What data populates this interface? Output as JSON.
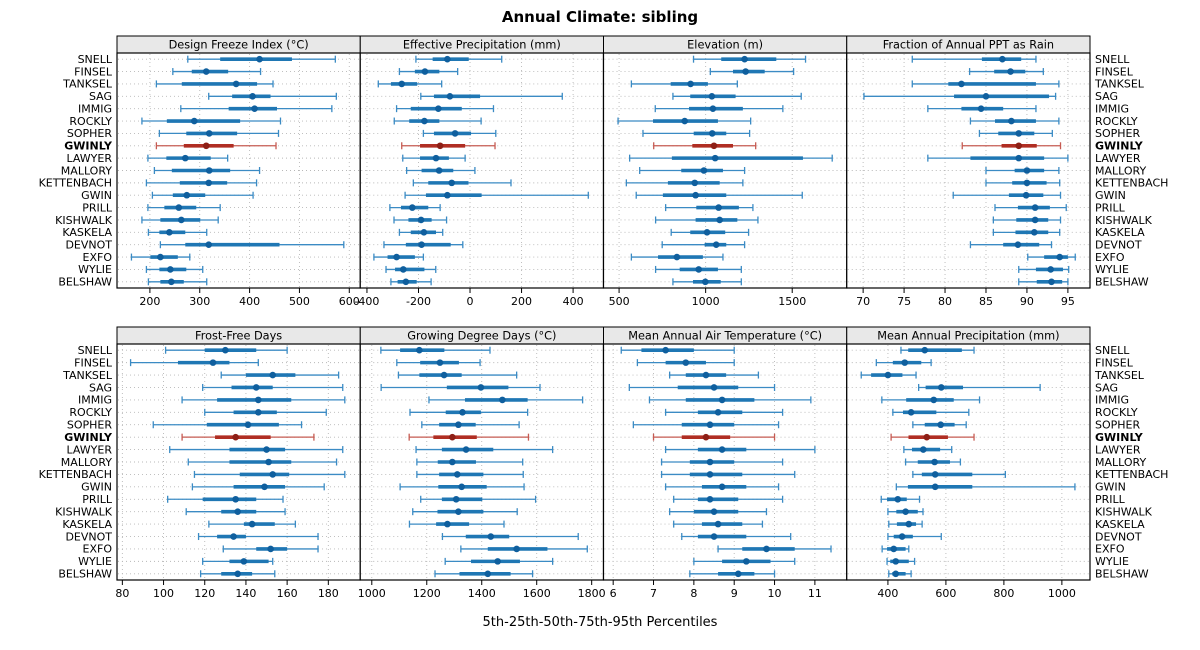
{
  "title": "Annual Climate: sibling",
  "xlabel": "5th-25th-50th-75th-95th Percentiles",
  "chart_data": {
    "type": "dotplot-trellis",
    "percentile_labels": [
      "5th",
      "25th",
      "50th",
      "75th",
      "95th"
    ],
    "highlight_site": "GWINLY",
    "colors": {
      "whisker": "#3b8bc4",
      "box": "#1f77b4",
      "dot": "#0f5f9e",
      "hl_whisker": "#c65b52",
      "hl_box": "#b02e23",
      "hl_dot": "#8e1f16",
      "grid": "#b8b8b8",
      "strip_bg": "#e8e8e8",
      "border": "#000000"
    },
    "sites": [
      "SNELL",
      "FINSEL",
      "TANKSEL",
      "SAG",
      "IMMIG",
      "ROCKLY",
      "SOPHER",
      "GWINLY",
      "LAWYER",
      "MALLORY",
      "KETTENBACH",
      "GWIN",
      "PRILL",
      "KISHWALK",
      "KASKELA",
      "DEVNOT",
      "EXFO",
      "WYLIE",
      "BELSHAW"
    ],
    "panels": [
      {
        "row": 0,
        "title": "Design Freeze Index (°C)",
        "xlim": [
          134,
          622
        ],
        "ticks": [
          200,
          300,
          400,
          500,
          600
        ],
        "values": [
          [
            276,
            341,
            420,
            485,
            572
          ],
          [
            246,
            284,
            313,
            357,
            422
          ],
          [
            213,
            264,
            373,
            415,
            447
          ],
          [
            318,
            365,
            406,
            442,
            574
          ],
          [
            262,
            358,
            410,
            455,
            565
          ],
          [
            184,
            234,
            289,
            381,
            462
          ],
          [
            219,
            273,
            319,
            375,
            458
          ],
          [
            213,
            268,
            313,
            368,
            453
          ],
          [
            196,
            233,
            271,
            322,
            356
          ],
          [
            209,
            244,
            319,
            361,
            420
          ],
          [
            193,
            260,
            318,
            355,
            414
          ],
          [
            205,
            246,
            274,
            311,
            407
          ],
          [
            196,
            229,
            258,
            293,
            341
          ],
          [
            184,
            221,
            263,
            301,
            337
          ],
          [
            197,
            219,
            239,
            271,
            314
          ],
          [
            221,
            271,
            318,
            460,
            589
          ],
          [
            163,
            201,
            221,
            256,
            280
          ],
          [
            193,
            219,
            241,
            273,
            306
          ],
          [
            197,
            221,
            243,
            268,
            314
          ]
        ]
      },
      {
        "row": 0,
        "title": "Effective Precipitation (mm)",
        "xlim": [
          -426,
          518
        ],
        "ticks": [
          -400,
          -200,
          0,
          200,
          400
        ],
        "values": [
          [
            -210,
            -145,
            -88,
            -5,
            123
          ],
          [
            -274,
            -214,
            -175,
            -119,
            -48
          ],
          [
            -356,
            -307,
            -265,
            -205,
            -110
          ],
          [
            -191,
            -140,
            -78,
            39,
            358
          ],
          [
            -285,
            -230,
            -123,
            -32,
            91
          ],
          [
            -294,
            -236,
            -177,
            -119,
            43
          ],
          [
            -181,
            -140,
            -58,
            4,
            100
          ],
          [
            -265,
            -194,
            -116,
            -19,
            97
          ],
          [
            -261,
            -194,
            -132,
            -82,
            -19
          ],
          [
            -246,
            -188,
            -120,
            -65,
            19
          ],
          [
            -220,
            -162,
            -71,
            -6,
            159
          ],
          [
            -252,
            -171,
            -88,
            45,
            459
          ],
          [
            -311,
            -268,
            -224,
            -162,
            -116
          ],
          [
            -295,
            -239,
            -190,
            -149,
            -91
          ],
          [
            -274,
            -230,
            -179,
            -132,
            -106
          ],
          [
            -334,
            -249,
            -188,
            -75,
            -28
          ],
          [
            -373,
            -320,
            -285,
            -214,
            -181
          ],
          [
            -326,
            -291,
            -259,
            -177,
            -133
          ],
          [
            -307,
            -281,
            -249,
            -207,
            -151
          ]
        ]
      },
      {
        "row": 0,
        "title": "Elevation (m)",
        "xlim": [
          410,
          1815
        ],
        "ticks": [
          500,
          1000,
          1500
        ],
        "values": [
          [
            930,
            1090,
            1225,
            1408,
            1577
          ],
          [
            1027,
            1158,
            1231,
            1341,
            1508
          ],
          [
            571,
            798,
            913,
            1013,
            1183
          ],
          [
            811,
            911,
            1036,
            1173,
            1552
          ],
          [
            709,
            904,
            1042,
            1215,
            1446
          ],
          [
            494,
            696,
            879,
            1071,
            1260
          ],
          [
            638,
            931,
            1038,
            1119,
            1254
          ],
          [
            700,
            923,
            1048,
            1158,
            1289
          ],
          [
            561,
            805,
            1055,
            1562,
            1731
          ],
          [
            619,
            859,
            990,
            1100,
            1225
          ],
          [
            542,
            782,
            937,
            1081,
            1215
          ],
          [
            599,
            753,
            942,
            1119,
            1558
          ],
          [
            769,
            946,
            1075,
            1192,
            1273
          ],
          [
            711,
            942,
            1081,
            1183,
            1302
          ],
          [
            801,
            911,
            1008,
            1113,
            1248
          ],
          [
            749,
            994,
            1061,
            1119,
            1225
          ],
          [
            571,
            725,
            834,
            984,
            1100
          ],
          [
            711,
            850,
            960,
            1071,
            1206
          ],
          [
            811,
            927,
            998,
            1087,
            1206
          ]
        ]
      },
      {
        "row": 0,
        "title": "Fraction of Annual PPT as Rain",
        "xlim": [
          68,
          97.7
        ],
        "ticks": [
          70,
          75,
          80,
          85,
          90,
          95
        ],
        "values": [
          [
            76,
            84.5,
            87,
            89.3,
            91.1
          ],
          [
            83,
            86,
            88,
            89.8,
            92
          ],
          [
            76,
            80.4,
            82,
            91.1,
            93.9
          ],
          [
            70.1,
            81.1,
            85,
            92.7,
            93.5
          ],
          [
            77.9,
            82,
            84.4,
            87.1,
            91.1
          ],
          [
            83.1,
            86.1,
            88.1,
            91.1,
            93.9
          ],
          [
            84.2,
            86.5,
            89,
            90.9,
            93.1
          ],
          [
            82.1,
            86.9,
            89,
            91.2,
            94.1
          ],
          [
            77.9,
            83.1,
            89,
            92.1,
            95
          ],
          [
            85,
            88.5,
            90,
            92.1,
            93.9
          ],
          [
            85,
            88.2,
            90,
            92.4,
            94
          ],
          [
            81,
            87.8,
            89.9,
            92,
            94.1
          ],
          [
            86.1,
            88.9,
            91,
            92.8,
            94.8
          ],
          [
            85.9,
            88.7,
            91,
            92.6,
            94.1
          ],
          [
            85.9,
            88.6,
            90.9,
            92.6,
            94
          ],
          [
            83.1,
            87.1,
            88.9,
            91.5,
            93
          ],
          [
            90.1,
            92.1,
            94,
            95,
            95.9
          ],
          [
            89,
            91.1,
            92.9,
            94.4,
            95.1
          ],
          [
            89,
            91.2,
            93,
            94.3,
            95
          ]
        ]
      },
      {
        "row": 1,
        "title": "Frost-Free Days",
        "xlim": [
          77.4,
          195.5
        ],
        "ticks": [
          80,
          100,
          120,
          140,
          160,
          180
        ],
        "values": [
          [
            101,
            120,
            130,
            145,
            160
          ],
          [
            84,
            107,
            124,
            132,
            146
          ],
          [
            128,
            140,
            153,
            164,
            185
          ],
          [
            119,
            133,
            145,
            153,
            187
          ],
          [
            109,
            126,
            146,
            162,
            188
          ],
          [
            120,
            134,
            146,
            155,
            179
          ],
          [
            95,
            121,
            141,
            156,
            167
          ],
          [
            109,
            125,
            135,
            152,
            173
          ],
          [
            103,
            132,
            150,
            159,
            187
          ],
          [
            112,
            132,
            151,
            162,
            184
          ],
          [
            115,
            137,
            153,
            161,
            188
          ],
          [
            114,
            134,
            149,
            159,
            178
          ],
          [
            102,
            119,
            135,
            145,
            158
          ],
          [
            111,
            128,
            136,
            145,
            159
          ],
          [
            122,
            139,
            143,
            154,
            164
          ],
          [
            117,
            126,
            134,
            140,
            175
          ],
          [
            129,
            145,
            152,
            160,
            175
          ],
          [
            119,
            132,
            139,
            151,
            153
          ],
          [
            118,
            128,
            136,
            143,
            154
          ]
        ]
      },
      {
        "row": 1,
        "title": "Growing Degree Days (°C)",
        "xlim": [
          958,
          1843
        ],
        "ticks": [
          1000,
          1200,
          1400,
          1600,
          1800
        ],
        "values": [
          [
            1033,
            1103,
            1173,
            1264,
            1430
          ],
          [
            1091,
            1176,
            1248,
            1317,
            1394
          ],
          [
            1097,
            1173,
            1263,
            1327,
            1527
          ],
          [
            1034,
            1273,
            1397,
            1497,
            1612
          ],
          [
            1208,
            1339,
            1475,
            1567,
            1767
          ],
          [
            1139,
            1269,
            1330,
            1397,
            1567
          ],
          [
            1182,
            1245,
            1315,
            1378,
            1536
          ],
          [
            1136,
            1224,
            1293,
            1382,
            1570
          ],
          [
            1161,
            1255,
            1343,
            1442,
            1658
          ],
          [
            1164,
            1240,
            1293,
            1379,
            1549
          ],
          [
            1164,
            1245,
            1311,
            1406,
            1551
          ],
          [
            1103,
            1242,
            1327,
            1418,
            1554
          ],
          [
            1178,
            1255,
            1307,
            1402,
            1596
          ],
          [
            1149,
            1239,
            1315,
            1406,
            1529
          ],
          [
            1137,
            1234,
            1275,
            1354,
            1481
          ],
          [
            1257,
            1342,
            1433,
            1500,
            1751
          ],
          [
            1324,
            1422,
            1527,
            1639,
            1784
          ],
          [
            1267,
            1361,
            1458,
            1539,
            1658
          ],
          [
            1230,
            1319,
            1422,
            1505,
            1585
          ]
        ]
      },
      {
        "row": 1,
        "title": "Mean Annual Air Temperature (°C)",
        "xlim": [
          5.76,
          11.79
        ],
        "ticks": [
          6,
          7,
          8,
          9,
          10,
          11
        ],
        "values": [
          [
            6.2,
            6.7,
            7.3,
            8,
            9
          ],
          [
            6.6,
            7.3,
            7.8,
            8.3,
            9
          ],
          [
            7.4,
            7.8,
            8.3,
            8.8,
            9.6
          ],
          [
            6.4,
            7.6,
            8.5,
            9.1,
            10
          ],
          [
            6.9,
            7.8,
            8.7,
            9.5,
            10.9
          ],
          [
            7.3,
            8.1,
            8.6,
            9.2,
            10.2
          ],
          [
            6.5,
            7.7,
            8.4,
            9,
            10.1
          ],
          [
            7,
            7.7,
            8.3,
            8.9,
            10
          ],
          [
            7.3,
            8.1,
            8.7,
            9.3,
            11
          ],
          [
            7.2,
            7.9,
            8.4,
            9,
            10.2
          ],
          [
            7.2,
            7.9,
            8.4,
            9.2,
            10.5
          ],
          [
            7.3,
            8.2,
            8.7,
            9.3,
            10.1
          ],
          [
            7.5,
            8.1,
            8.4,
            9.1,
            10.2
          ],
          [
            7.4,
            8,
            8.5,
            9.1,
            9.8
          ],
          [
            7.5,
            8.2,
            8.6,
            9.2,
            9.7
          ],
          [
            7.7,
            8.1,
            8.5,
            9.3,
            10.4
          ],
          [
            8.6,
            9.2,
            9.8,
            10.5,
            11.4
          ],
          [
            8,
            8.7,
            9.3,
            9.9,
            10.5
          ],
          [
            7.9,
            8.6,
            9.1,
            9.5,
            10
          ]
        ]
      },
      {
        "row": 1,
        "title": "Mean Annual Precipitation (mm)",
        "xlim": [
          258,
          1097
        ],
        "ticks": [
          400,
          600,
          800,
          1000
        ],
        "values": [
          [
            445,
            470,
            527,
            655,
            697
          ],
          [
            360,
            417,
            458,
            515,
            549
          ],
          [
            308,
            342,
            400,
            450,
            497
          ],
          [
            506,
            530,
            584,
            659,
            925
          ],
          [
            379,
            463,
            558,
            627,
            716
          ],
          [
            417,
            452,
            480,
            567,
            679
          ],
          [
            486,
            527,
            582,
            630,
            670
          ],
          [
            411,
            471,
            534,
            607,
            697
          ],
          [
            455,
            483,
            522,
            580,
            620
          ],
          [
            461,
            503,
            561,
            614,
            650
          ],
          [
            486,
            517,
            563,
            691,
            805
          ],
          [
            429,
            469,
            563,
            691,
            1045
          ],
          [
            377,
            397,
            434,
            465,
            509
          ],
          [
            400,
            429,
            461,
            503,
            521
          ],
          [
            403,
            431,
            472,
            497,
            518
          ],
          [
            400,
            420,
            449,
            486,
            584
          ],
          [
            380,
            397,
            420,
            461,
            472
          ],
          [
            397,
            408,
            427,
            472,
            492
          ],
          [
            403,
            415,
            427,
            461,
            480
          ]
        ]
      }
    ]
  }
}
